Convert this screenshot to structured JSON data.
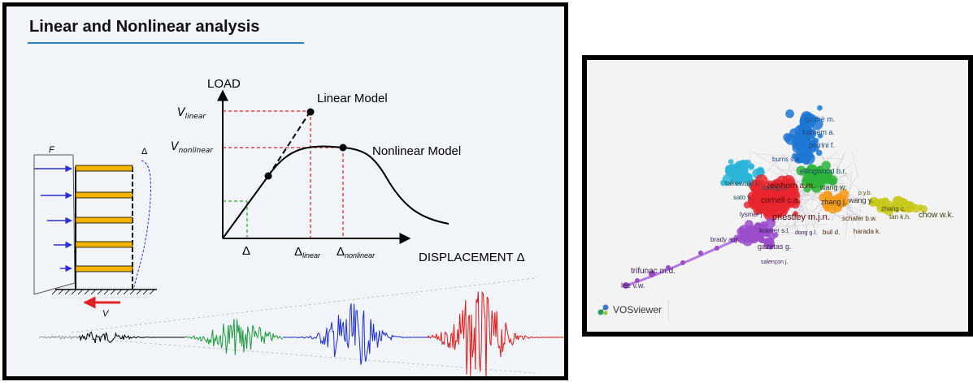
{
  "left_panel": {
    "title": "Linear and Nonlinear analysis",
    "load_label": "LOAD",
    "linear_model": "Linear Model",
    "nonlinear_model": "Nonlinear Model",
    "v_linear_main": "V",
    "v_linear_sub": "linear",
    "v_nonlinear_main": "V",
    "v_nonlinear_sub": "nonlinear",
    "delta": "Δ",
    "delta_linear_main": "Δ",
    "delta_linear_sub": "linear",
    "delta_nonlinear_main": "Δ",
    "delta_nonlinear_sub": "nonlinear",
    "displacement": "DISPLACEMENT Δ",
    "frame_force": "F",
    "frame_delta": "Δ",
    "frame_shear": "V"
  },
  "right_panel": {
    "app_name": "VOSviewer",
    "labels": [
      {
        "text": "gioffrè m.",
        "color": "#1a5a9a"
      },
      {
        "text": "kareem a.",
        "color": "#1a4a8a"
      },
      {
        "text": "petrini f.",
        "color": "#1a4a8a"
      },
      {
        "text": "burns s.a.",
        "color": "#1a4a8a"
      },
      {
        "text": "soong t.t.",
        "color": "#0e5f6f"
      },
      {
        "text": "ellingwood b.r.",
        "color": "#0e4f5f"
      },
      {
        "text": "takewaki i.",
        "color": "#0e4f5f"
      },
      {
        "text": "reinhorn a.m.",
        "color": "#5a0a0a"
      },
      {
        "text": "wang w.",
        "color": "#1a4a1a"
      },
      {
        "text": "p.y.b.",
        "color": "#4a4a0a"
      },
      {
        "text": "sato y.",
        "color": "#0e4f5f"
      },
      {
        "text": "cornell c.a.",
        "color": "#5a0a0a"
      },
      {
        "text": "zhang j.",
        "color": "#2a2a2a"
      },
      {
        "text": "wang y.",
        "color": "#2a2a2a"
      },
      {
        "text": "zhang c.",
        "color": "#4a4a0a"
      },
      {
        "text": "lysmer j.",
        "color": "#3a1a5a"
      },
      {
        "text": "priestley m.j.n.",
        "color": "#5a0a0a"
      },
      {
        "text": "schafer b.w.",
        "color": "#4a2a0a"
      },
      {
        "text": "tan k.h.",
        "color": "#4a4a0a"
      },
      {
        "text": "chow w.k.",
        "color": "#3a3a0a"
      },
      {
        "text": "kramer s.l.",
        "color": "#3a1a5a"
      },
      {
        "text": "dong g.l.",
        "color": "#3a1a5a"
      },
      {
        "text": "buil d.",
        "color": "#4a2a0a"
      },
      {
        "text": "harada k.",
        "color": "#4a2a0a"
      },
      {
        "text": "brady a.g.",
        "color": "#3a1a5a"
      },
      {
        "text": "gazetas g.",
        "color": "#3a1a5a"
      },
      {
        "text": "salençon j.",
        "color": "#3a1a5a"
      },
      {
        "text": "trifunac m.d.",
        "color": "#3a1a5a"
      },
      {
        "text": "lee v.w.",
        "color": "#3a1a5a"
      }
    ]
  }
}
